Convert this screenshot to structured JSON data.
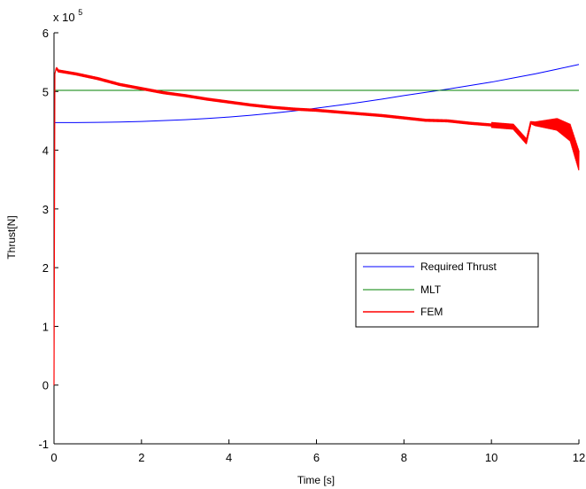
{
  "chart_data": {
    "type": "line",
    "title": "",
    "xlabel": "Time [s]",
    "ylabel": "Thrust[N]",
    "xlim": [
      0,
      12
    ],
    "ylim": [
      -1,
      6
    ],
    "xticks": [
      0,
      2,
      4,
      6,
      8,
      10,
      12
    ],
    "yticks": [
      -1,
      0,
      1,
      2,
      3,
      4,
      5,
      6
    ],
    "xtick_labels": [
      "0",
      "2",
      "4",
      "6",
      "8",
      "10",
      "12"
    ],
    "ytick_labels": [
      "-1",
      "0",
      "1",
      "2",
      "3",
      "4",
      "5",
      "6"
    ],
    "y_multiplier_label": "x 10",
    "y_multiplier_exponent": "5",
    "grid": false,
    "legend_position": "center-right",
    "series": [
      {
        "name": "Required Thrust",
        "color": "#0000ff",
        "x": [
          0,
          0.5,
          1,
          1.5,
          2,
          2.5,
          3,
          3.5,
          4,
          4.5,
          5,
          5.5,
          6,
          6.5,
          7,
          7.5,
          8,
          8.5,
          9,
          9.5,
          10,
          10.5,
          11,
          11.5,
          12
        ],
        "y": [
          4.47,
          4.47,
          4.475,
          4.48,
          4.49,
          4.505,
          4.52,
          4.54,
          4.565,
          4.595,
          4.63,
          4.67,
          4.715,
          4.765,
          4.815,
          4.87,
          4.93,
          4.985,
          5.04,
          5.1,
          5.16,
          5.23,
          5.3,
          5.38,
          5.46
        ]
      },
      {
        "name": "MLT",
        "color": "#008000",
        "x": [
          0,
          12
        ],
        "y": [
          5.02,
          5.02
        ]
      },
      {
        "name": "FEM",
        "color": "#ff0000",
        "x": [
          0,
          0.02,
          0.05,
          0.1,
          0.5,
          1,
          1.5,
          2,
          2.5,
          3,
          3.5,
          4,
          4.5,
          5,
          5.5,
          6,
          6.5,
          7,
          7.5,
          8,
          8.5,
          9,
          9.5,
          10,
          10.5,
          10.8,
          10.9,
          11,
          11.5,
          11.8,
          12
        ],
        "y": [
          0,
          5.3,
          5.4,
          5.35,
          5.3,
          5.22,
          5.12,
          5.05,
          4.98,
          4.93,
          4.87,
          4.82,
          4.77,
          4.73,
          4.7,
          4.68,
          4.65,
          4.62,
          4.59,
          4.55,
          4.51,
          4.5,
          4.46,
          4.43,
          4.4,
          4.15,
          4.47,
          4.45,
          4.44,
          4.3,
          3.82
        ],
        "noise_band": 0.05
      }
    ]
  }
}
